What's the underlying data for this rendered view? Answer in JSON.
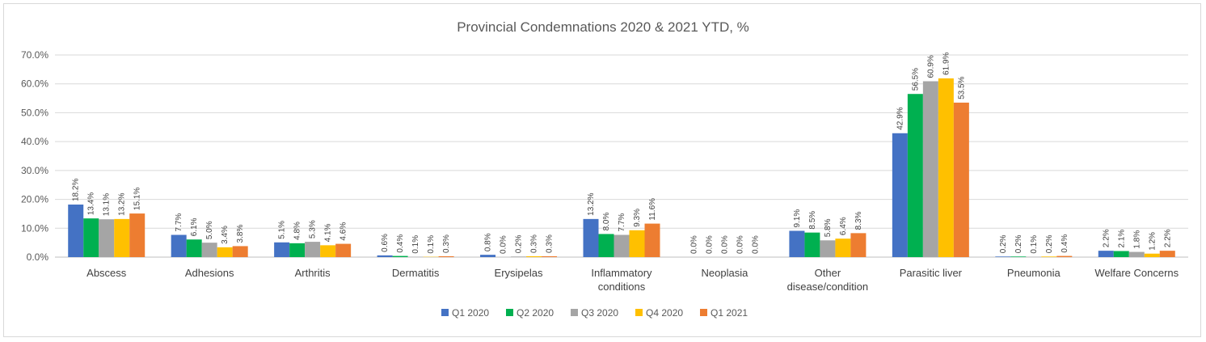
{
  "chart_data": {
    "type": "bar",
    "title": "Provincial Condemnations 2020 & 2021 YTD, %",
    "xlabel": "",
    "ylabel": "",
    "ylim": [
      0,
      70
    ],
    "yticks": [
      "0.0%",
      "10.0%",
      "20.0%",
      "30.0%",
      "40.0%",
      "50.0%",
      "60.0%",
      "70.0%"
    ],
    "grid": true,
    "legend_position": "bottom",
    "categories": [
      [
        "Abscess"
      ],
      [
        "Adhesions"
      ],
      [
        "Arthritis"
      ],
      [
        "Dermatitis"
      ],
      [
        "Erysipelas"
      ],
      [
        "Inflammatory",
        "conditions"
      ],
      [
        "Neoplasia"
      ],
      [
        "Other",
        "disease/condition"
      ],
      [
        "Parasitic liver"
      ],
      [
        "Pneumonia"
      ],
      [
        "Welfare Concerns"
      ]
    ],
    "series": [
      {
        "name": "Q1 2020",
        "color": "#4472c4",
        "values": [
          18.2,
          7.7,
          5.1,
          0.6,
          0.8,
          13.2,
          0.0,
          9.1,
          42.9,
          0.2,
          2.2
        ],
        "labels": [
          "18.2%",
          "7.7%",
          "5.1%",
          "0.6%",
          "0.8%",
          "13.2%",
          "0.0%",
          "9.1%",
          "42.9%",
          "0.2%",
          "2.2%"
        ]
      },
      {
        "name": "Q2 2020",
        "color": "#00b050",
        "values": [
          13.4,
          6.1,
          4.8,
          0.4,
          0.0,
          8.0,
          0.0,
          8.5,
          56.5,
          0.2,
          2.1
        ],
        "labels": [
          "13.4%",
          "6.1%",
          "4.8%",
          "0.4%",
          "0.0%",
          "8.0%",
          "0.0%",
          "8.5%",
          "56.5%",
          "0.2%",
          "2.1%"
        ]
      },
      {
        "name": "Q3 2020",
        "color": "#a5a5a5",
        "values": [
          13.1,
          5.0,
          5.3,
          0.1,
          0.2,
          7.7,
          0.0,
          5.8,
          60.9,
          0.1,
          1.8
        ],
        "labels": [
          "13.1%",
          "5.0%",
          "5.3%",
          "0.1%",
          "0.2%",
          "7.7%",
          "0.0%",
          "5.8%",
          "60.9%",
          "0.1%",
          "1.8%"
        ]
      },
      {
        "name": "Q4 2020",
        "color": "#ffc000",
        "values": [
          13.2,
          3.4,
          4.1,
          0.1,
          0.3,
          9.3,
          0.0,
          6.4,
          61.9,
          0.2,
          1.2
        ],
        "labels": [
          "13.2%",
          "3.4%",
          "4.1%",
          "0.1%",
          "0.3%",
          "9.3%",
          "0.0%",
          "6.4%",
          "61.9%",
          "0.2%",
          "1.2%"
        ]
      },
      {
        "name": "Q1 2021",
        "color": "#ed7d31",
        "values": [
          15.1,
          3.8,
          4.6,
          0.3,
          0.3,
          11.6,
          0.0,
          8.3,
          53.5,
          0.4,
          2.2
        ],
        "labels": [
          "15.1%",
          "3.8%",
          "4.6%",
          "0.3%",
          "0.3%",
          "11.6%",
          "0.0%",
          "8.3%",
          "53.5%",
          "0.4%",
          "2.2%"
        ]
      }
    ]
  }
}
